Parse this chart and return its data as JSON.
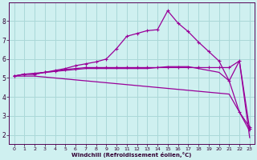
{
  "bg_color": "#cff0f0",
  "grid_color": "#aad8d8",
  "line_color": "#990099",
  "xlabel": "Windchill (Refroidissement éolien,°C)",
  "xlim": [
    -0.5,
    23.5
  ],
  "ylim": [
    1.5,
    9.0
  ],
  "yticks": [
    2,
    3,
    4,
    5,
    6,
    7,
    8
  ],
  "xticks": [
    0,
    1,
    2,
    3,
    4,
    5,
    6,
    7,
    8,
    9,
    10,
    11,
    12,
    13,
    14,
    15,
    16,
    17,
    18,
    19,
    20,
    21,
    22,
    23
  ],
  "line1_x": [
    0,
    1,
    2,
    3,
    4,
    5,
    6,
    7,
    8,
    9,
    10,
    11,
    12,
    13,
    14,
    15,
    16,
    17,
    18,
    19,
    20,
    21,
    22,
    23
  ],
  "line1_y": [
    5.1,
    5.2,
    5.2,
    5.3,
    5.35,
    5.45,
    5.5,
    5.55,
    5.55,
    5.55,
    5.55,
    5.55,
    5.55,
    5.55,
    5.55,
    5.55,
    5.55,
    5.55,
    5.55,
    5.55,
    5.55,
    5.55,
    5.9,
    2.3
  ],
  "line2_x": [
    0,
    1,
    2,
    3,
    4,
    5,
    6,
    7,
    8,
    9,
    10,
    11,
    12,
    13,
    14,
    15,
    16,
    17,
    18,
    19,
    20,
    21,
    22,
    23
  ],
  "line2_y": [
    5.1,
    5.1,
    5.1,
    5.05,
    5.0,
    4.95,
    4.9,
    4.85,
    4.8,
    4.75,
    4.7,
    4.65,
    4.6,
    4.55,
    4.5,
    4.45,
    4.4,
    4.35,
    4.3,
    4.25,
    4.2,
    4.15,
    3.2,
    2.2
  ],
  "line3_x": [
    0,
    1,
    2,
    3,
    4,
    5,
    6,
    7,
    8,
    9,
    10,
    11,
    12,
    13,
    14,
    15,
    16,
    17,
    18,
    19,
    20,
    21,
    22,
    23
  ],
  "line3_y": [
    5.1,
    5.2,
    5.25,
    5.3,
    5.4,
    5.5,
    5.65,
    5.75,
    5.85,
    6.0,
    6.55,
    7.2,
    7.35,
    7.5,
    7.55,
    8.55,
    7.9,
    7.45,
    6.9,
    6.4,
    5.9,
    4.85,
    3.2,
    2.4
  ],
  "line4_x": [
    0,
    1,
    2,
    3,
    4,
    5,
    6,
    7,
    8,
    9,
    10,
    11,
    12,
    13,
    14,
    15,
    16,
    17,
    18,
    19,
    20,
    21,
    22,
    23
  ],
  "line4_y": [
    5.1,
    5.2,
    5.2,
    5.3,
    5.35,
    5.4,
    5.45,
    5.5,
    5.5,
    5.5,
    5.5,
    5.5,
    5.5,
    5.5,
    5.55,
    5.6,
    5.6,
    5.6,
    5.5,
    5.4,
    5.3,
    4.85,
    5.9,
    1.85
  ]
}
